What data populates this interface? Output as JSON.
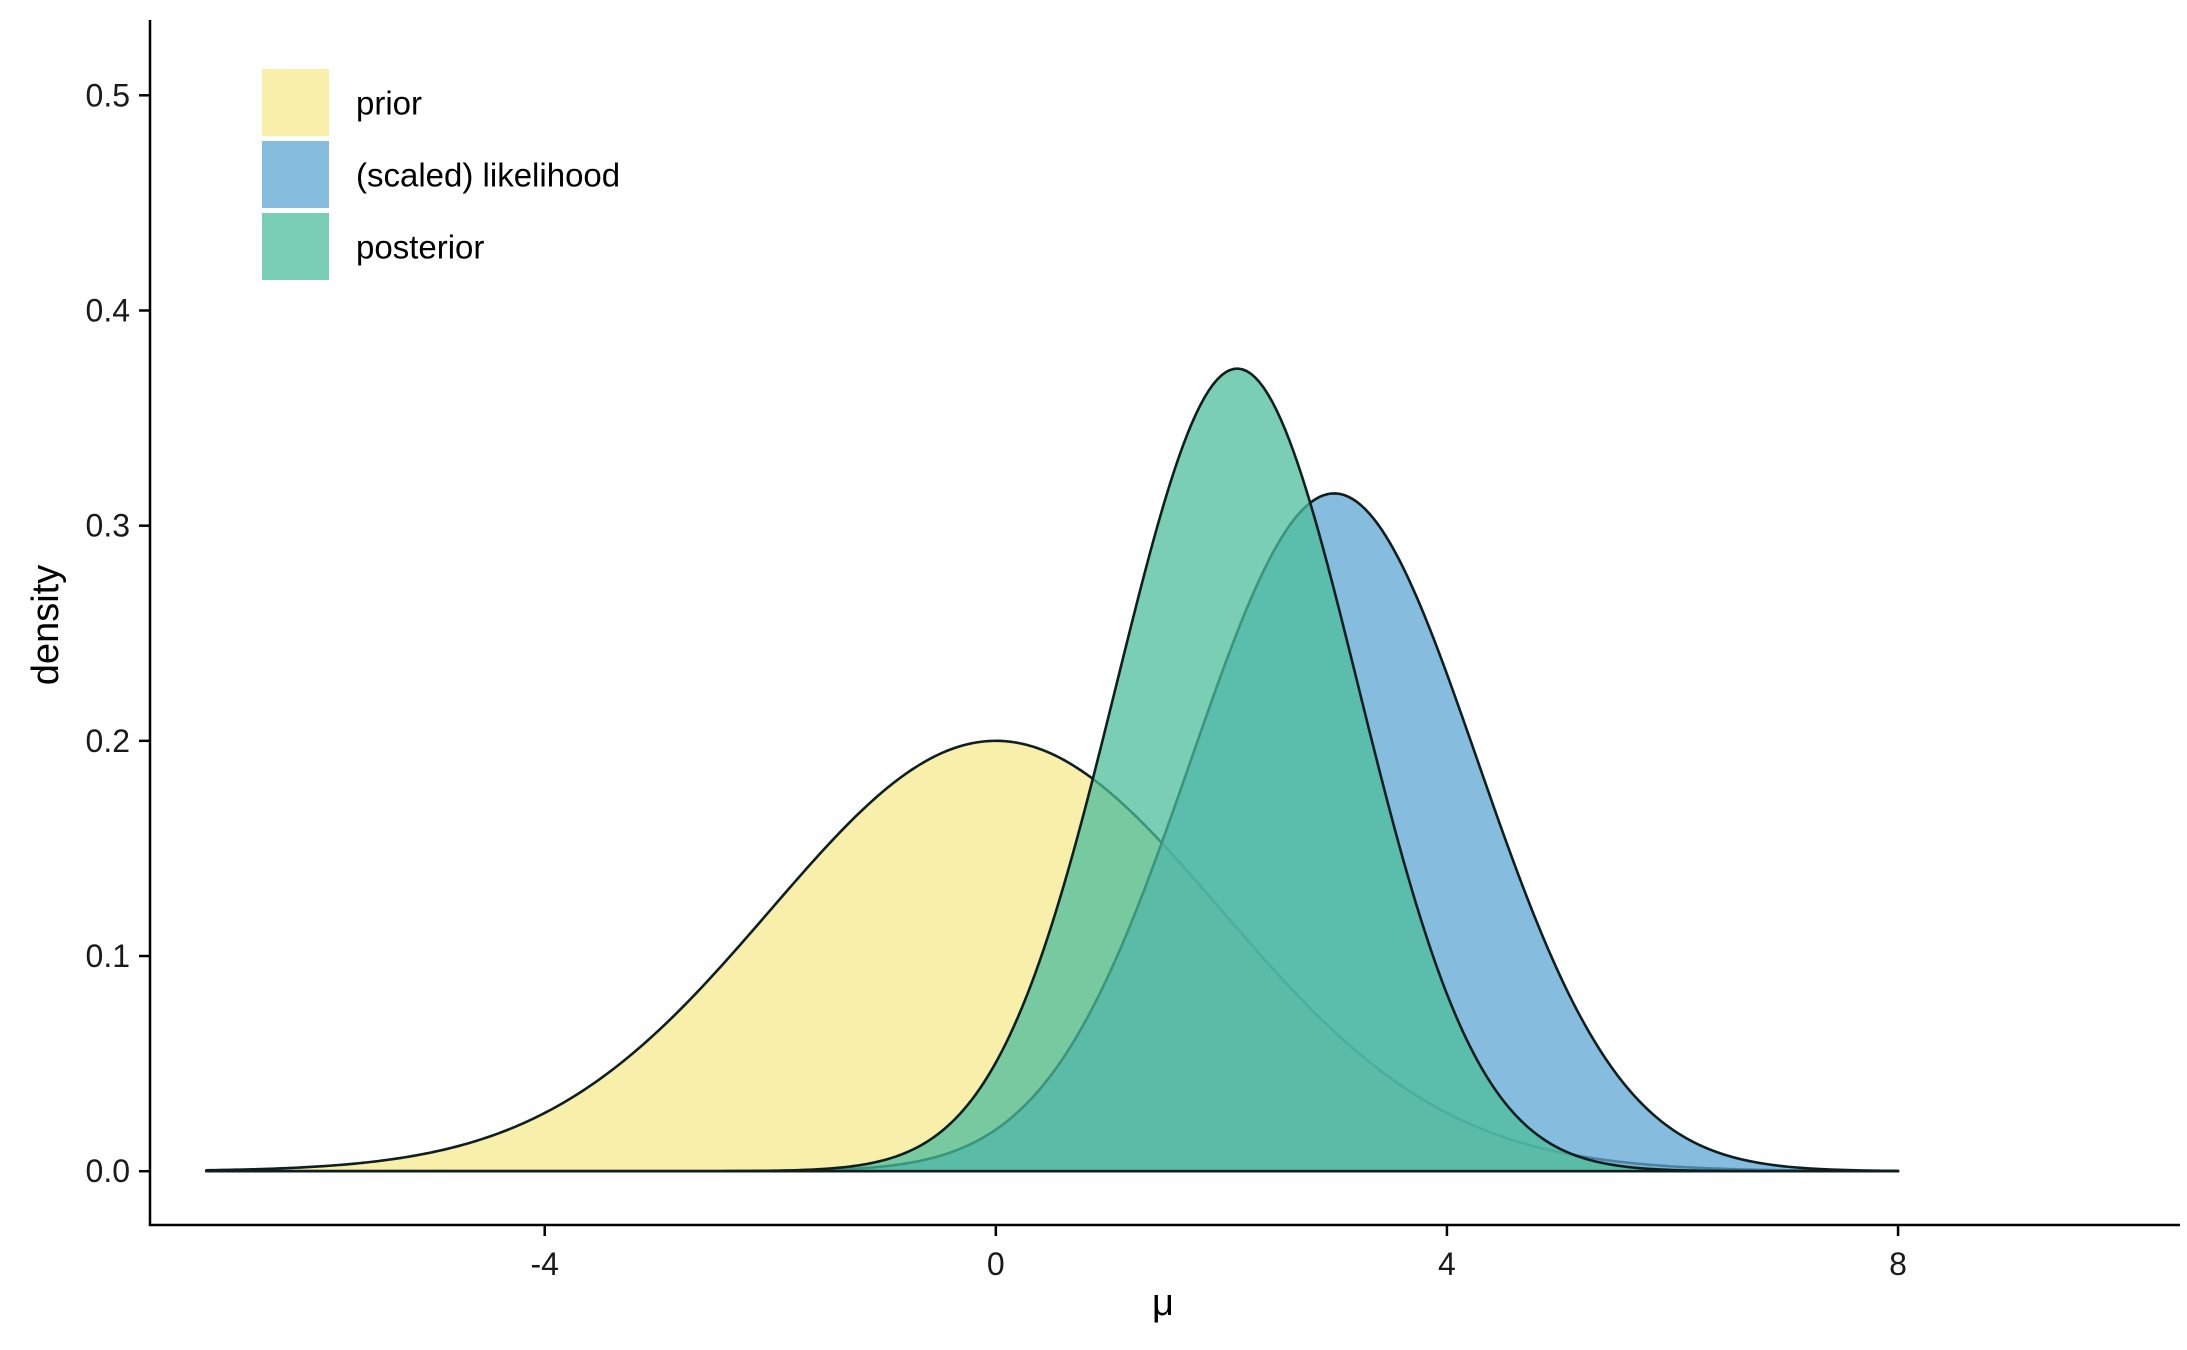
{
  "chart_data": {
    "type": "area",
    "title": "",
    "xlabel": "μ",
    "ylabel": "density",
    "xlim": [
      -7.5,
      10.5
    ],
    "ylim": [
      -0.025,
      0.535
    ],
    "x_ticks": [
      -4,
      0,
      4,
      8
    ],
    "x_tick_labels": [
      "-4",
      "0",
      "4",
      "8"
    ],
    "y_ticks": [
      0.0,
      0.1,
      0.2,
      0.3,
      0.4,
      0.5
    ],
    "y_tick_labels": [
      "0.0",
      "0.1",
      "0.2",
      "0.3",
      "0.4",
      "0.5"
    ],
    "x_range": [
      -7,
      8
    ],
    "grid": false,
    "legend_position": "top-left",
    "series": [
      {
        "name": "prior",
        "distribution": "normal",
        "mean": 0,
        "sd": 2,
        "peak_density": 0.2,
        "color": "#f5ea8e"
      },
      {
        "name": "(scaled) likelihood",
        "distribution": "normal",
        "mean": 3,
        "sd": 1.27,
        "peak_density": 0.315,
        "color": "#5ea6d3"
      },
      {
        "name": "posterior",
        "distribution": "normal",
        "mean": 2.14,
        "sd": 1.07,
        "peak_density": 0.373,
        "color": "#4cbd9b"
      }
    ]
  }
}
